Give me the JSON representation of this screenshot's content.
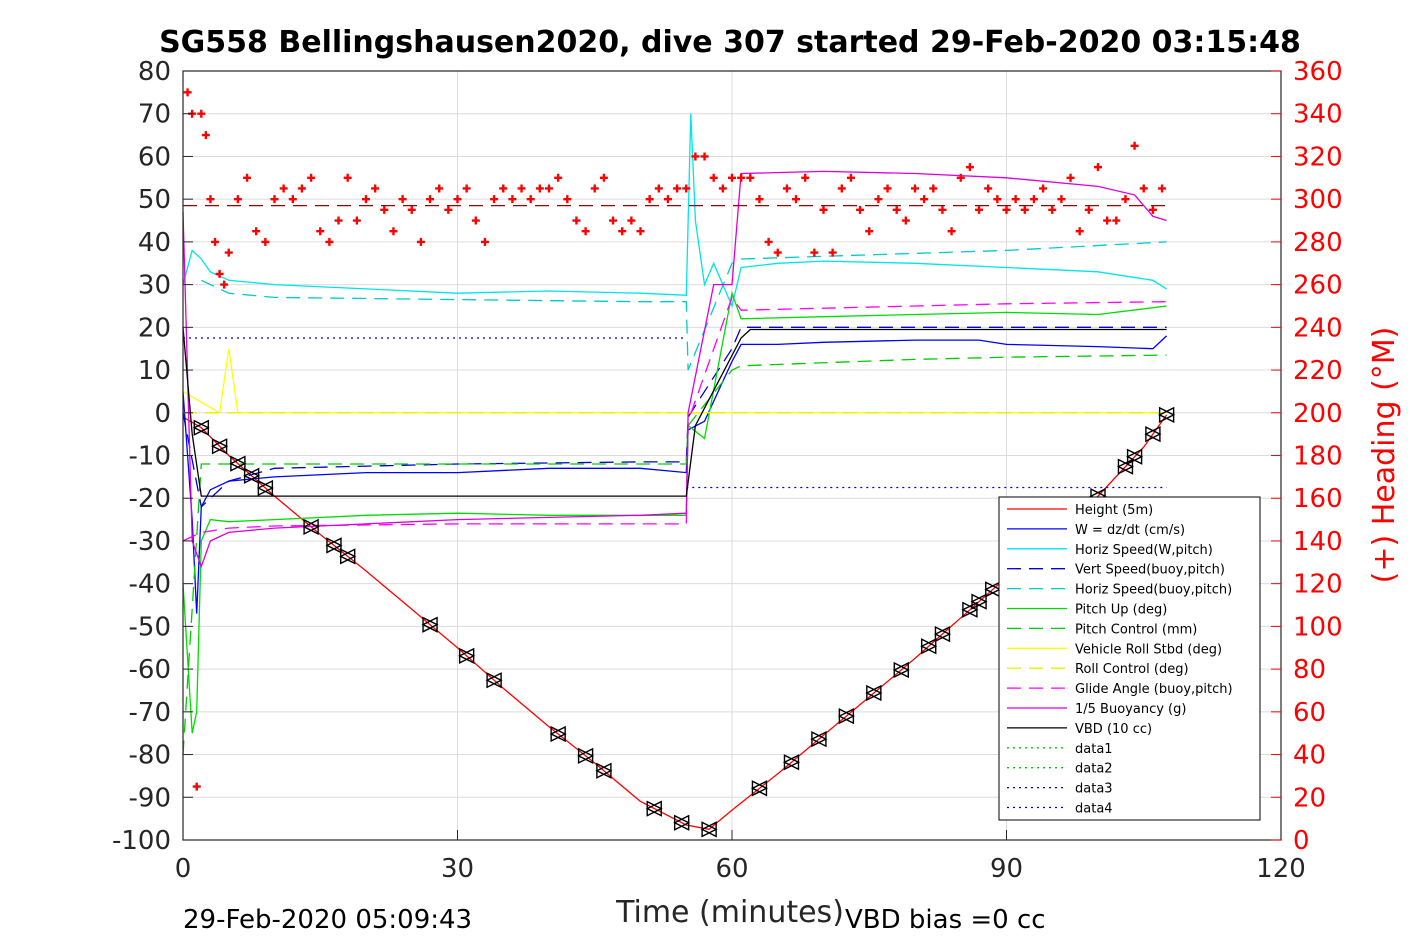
{
  "chart_data": {
    "type": "line",
    "title": "SG558 Bellingshausen2020, dive 307 started 29-Feb-2020 03:15:48",
    "xlabel": "Time (minutes)",
    "ylabel_left": "",
    "ylabel_right": "(+) Heading (°M)",
    "xlim": [
      0,
      120
    ],
    "ylim_left": [
      -100,
      80
    ],
    "ylim_right": [
      0,
      360
    ],
    "x_ticks": [
      "0",
      "30",
      "60",
      "90",
      "120"
    ],
    "y_ticks_left": [
      "80",
      "70",
      "60",
      "50",
      "40",
      "30",
      "20",
      "10",
      "0",
      "-10",
      "-20",
      "-30",
      "-40",
      "-50",
      "-60",
      "-70",
      "-80",
      "-90",
      "-100"
    ],
    "y_ticks_right": [
      "360",
      "340",
      "320",
      "300",
      "280",
      "260",
      "240",
      "220",
      "200",
      "180",
      "160",
      "140",
      "120",
      "100",
      "80",
      "60",
      "40",
      "20",
      "0"
    ],
    "grid": true,
    "legend_position": "bottom-right",
    "footer_left": "29-Feb-2020 05:09:43",
    "footer_right": "VBD bias =0 cc",
    "series": [
      {
        "name": "Height (5m)",
        "color": "#ff0000",
        "style": "solid",
        "x": [
          0,
          2,
          5,
          10,
          15,
          20,
          25,
          30,
          35,
          40,
          45,
          50,
          55,
          57.5,
          60,
          65,
          70,
          75,
          80,
          85,
          90,
          95,
          100,
          105,
          107.5
        ],
        "y": [
          -1,
          -3.5,
          -10,
          -19.5,
          -28.5,
          -37,
          -46,
          -55,
          -64.5,
          -73.5,
          -82,
          -91,
          -96.5,
          -97.5,
          -93,
          -84.5,
          -75.5,
          -66.5,
          -57.5,
          -48,
          -38.5,
          -29,
          -19.5,
          -8,
          -0.5
        ]
      },
      {
        "name": "W = dz/dt (cm/s)",
        "color": "#0000ff",
        "style": "solid",
        "x": [
          0,
          1,
          1.5,
          2,
          3,
          5,
          10,
          20,
          30,
          40,
          50,
          55,
          55.2,
          57,
          60,
          61,
          65,
          70,
          80,
          87,
          90,
          100,
          106,
          107.5
        ],
        "y": [
          5,
          -25,
          -47,
          -22,
          -18,
          -16,
          -15,
          -14,
          -14,
          -13,
          -13,
          -14,
          -4,
          -2,
          12,
          16,
          16,
          16.5,
          17,
          17,
          16,
          15.5,
          15,
          18
        ]
      },
      {
        "name": "Horiz Speed(W,pitch)",
        "color": "#00e5e5",
        "style": "solid",
        "x": [
          0,
          1,
          2,
          3,
          5,
          10,
          20,
          30,
          40,
          50,
          55,
          55.5,
          56,
          57,
          58,
          60,
          61,
          65,
          70,
          80,
          90,
          100,
          106,
          107.5
        ],
        "y": [
          30,
          38,
          36,
          33,
          31,
          30,
          29,
          28,
          28.5,
          28,
          27.5,
          70,
          45,
          30,
          35,
          25,
          34,
          35,
          35.5,
          35,
          34,
          33,
          31,
          29
        ]
      },
      {
        "name": "Vert Speed(buoy,pitch)",
        "color": "#0000cc",
        "style": "dash",
        "x": [
          0,
          2,
          5,
          10,
          30,
          50,
          55,
          55.2,
          60,
          61,
          90,
          107.5
        ],
        "y": [
          0,
          -22,
          -16,
          -13,
          -12,
          -11.5,
          -11.5,
          -1,
          15,
          20,
          20,
          20
        ]
      },
      {
        "name": "Horiz Speed(buoy,pitch)",
        "color": "#00cccc",
        "style": "dash",
        "x": [
          2,
          5,
          10,
          30,
          50,
          55,
          55.2,
          60,
          61,
          90,
          107.5
        ],
        "y": [
          31,
          28,
          27,
          26.5,
          26,
          26,
          10,
          35,
          36,
          38,
          40
        ]
      },
      {
        "name": "Pitch Up (deg)",
        "color": "#00dd00",
        "style": "solid",
        "x": [
          0,
          1,
          1.5,
          2,
          3,
          5,
          10,
          20,
          30,
          40,
          50,
          55,
          55.2,
          57,
          60,
          61,
          70,
          80,
          90,
          100,
          107.5
        ],
        "y": [
          -40,
          -75,
          -70,
          -30,
          -25,
          -25.5,
          -25,
          -24,
          -23.5,
          -24,
          -24,
          -24,
          -3,
          -6,
          28,
          22,
          22.5,
          23,
          23.5,
          23,
          25
        ]
      },
      {
        "name": "Pitch Control (mm)",
        "color": "#00cc00",
        "style": "dash",
        "x": [
          0,
          2,
          10,
          30,
          50,
          55,
          55.2,
          60,
          61,
          80,
          90,
          107.5
        ],
        "y": [
          -80,
          -12,
          -12,
          -12,
          -12,
          -12,
          -3,
          10,
          11,
          12.5,
          13,
          13.5
        ]
      },
      {
        "name": "Vehicle Roll Stbd (deg)",
        "color": "#ffff00",
        "style": "solid",
        "x": [
          0,
          4,
          5,
          6,
          10,
          20,
          30,
          40,
          50,
          55,
          60,
          70,
          80,
          90,
          100,
          107.5
        ],
        "y": [
          5,
          0,
          15,
          0,
          0,
          0,
          0,
          0,
          0,
          0,
          0,
          0,
          0,
          0,
          0,
          0
        ]
      },
      {
        "name": "Roll Control (deg)",
        "color": "#eeee00",
        "style": "dash",
        "x": [
          0,
          10,
          20,
          30,
          40,
          50,
          60,
          70,
          80,
          90,
          100,
          107.5
        ],
        "y": [
          0,
          0,
          0,
          0,
          0,
          0,
          0,
          0,
          0,
          0,
          0,
          0
        ]
      },
      {
        "name": "Glide Angle (buoy,pitch)",
        "color": "#ff00ff",
        "style": "dash",
        "x": [
          0,
          2,
          5,
          10,
          30,
          50,
          55,
          55.2,
          60,
          61,
          80,
          90,
          107.5
        ],
        "y": [
          -30,
          -28,
          -27,
          -26.5,
          -26,
          -26,
          -26,
          -2,
          27,
          24,
          25,
          25.5,
          26
        ]
      },
      {
        "name": "1/5 Buoyancy (g)",
        "color": "#dd00dd",
        "style": "solid",
        "x": [
          0,
          1,
          2,
          3,
          5,
          10,
          20,
          30,
          40,
          50,
          55,
          55.2,
          58,
          60,
          61,
          70,
          80,
          90,
          100,
          104,
          106,
          107.5
        ],
        "y": [
          47,
          -30,
          -36,
          -30,
          -28,
          -27,
          -26,
          -25,
          -24.5,
          -24,
          -23.5,
          0,
          30,
          30,
          56,
          56.5,
          56,
          55,
          53,
          51,
          46,
          45
        ]
      },
      {
        "name": "VBD (10 cc)",
        "color": "#000000",
        "style": "solid",
        "x": [
          0,
          1,
          2,
          3,
          55,
          56,
          61,
          62,
          107.5
        ],
        "y": [
          20,
          -5,
          -19.5,
          -19.5,
          -19.5,
          -3,
          17.5,
          19.5,
          19.5
        ]
      },
      {
        "name": "data1",
        "color": "#00cc00",
        "style": "dot",
        "x": [],
        "y": []
      },
      {
        "name": "data2",
        "color": "#00cc00",
        "style": "dot",
        "x": [],
        "y": []
      },
      {
        "name": "data3",
        "color": "#0000cc",
        "style": "dot",
        "x": [
          0,
          55
        ],
        "y": [
          17.5,
          17.5
        ]
      },
      {
        "name": "data4",
        "color": "#0000cc",
        "style": "dot",
        "x": [
          55,
          107.5
        ],
        "y": [
          -17.5,
          -17.5
        ]
      }
    ],
    "heading_reference": {
      "color": "#990000",
      "style": "dash",
      "x": [
        0,
        107.5
      ],
      "y": [
        297,
        297
      ]
    },
    "heading": {
      "color": "#ff0000",
      "marker": "+",
      "x": [
        0.5,
        1,
        1.5,
        2,
        2.5,
        3,
        3.5,
        4,
        4.5,
        5,
        6,
        7,
        8,
        9,
        10,
        11,
        12,
        13,
        14,
        15,
        16,
        17,
        18,
        19,
        20,
        21,
        22,
        23,
        24,
        25,
        26,
        27,
        28,
        29,
        30,
        31,
        32,
        33,
        34,
        35,
        36,
        37,
        38,
        39,
        40,
        41,
        42,
        43,
        44,
        45,
        46,
        47,
        48,
        49,
        50,
        51,
        52,
        53,
        54,
        55,
        56,
        57,
        58,
        59,
        60,
        61,
        62,
        63,
        64,
        65,
        66,
        67,
        68,
        69,
        70,
        71,
        72,
        73,
        74,
        75,
        76,
        77,
        78,
        79,
        80,
        81,
        82,
        83,
        84,
        85,
        86,
        87,
        88,
        89,
        90,
        91,
        92,
        93,
        94,
        95,
        96,
        97,
        98,
        99,
        100,
        101,
        102,
        103,
        104,
        105,
        106,
        107
      ],
      "y": [
        350,
        340,
        25,
        340,
        330,
        300,
        280,
        265,
        260,
        275,
        300,
        310,
        285,
        280,
        300,
        305,
        300,
        305,
        310,
        285,
        280,
        290,
        310,
        290,
        300,
        305,
        295,
        285,
        300,
        295,
        280,
        300,
        305,
        295,
        300,
        305,
        290,
        280,
        300,
        305,
        300,
        305,
        300,
        305,
        305,
        310,
        300,
        290,
        285,
        305,
        310,
        290,
        285,
        290,
        285,
        300,
        305,
        300,
        305,
        305,
        320,
        320,
        310,
        305,
        310,
        310,
        310,
        300,
        280,
        275,
        305,
        300,
        310,
        275,
        295,
        275,
        305,
        310,
        295,
        285,
        300,
        305,
        295,
        290,
        305,
        300,
        305,
        295,
        285,
        310,
        315,
        295,
        305,
        300,
        295,
        300,
        295,
        300,
        305,
        295,
        300,
        310,
        285,
        295,
        315,
        290,
        290,
        300,
        325,
        305,
        295,
        305
      ]
    },
    "ascent_markers": {
      "marker": "triangle",
      "color": "#000000",
      "series_ref": "Height (5m)",
      "x": [
        2,
        4,
        6,
        7.5,
        9,
        14,
        16.5,
        18,
        27,
        31,
        34,
        41,
        44,
        46,
        51.5,
        54.5,
        57.5,
        63,
        66.5,
        69.5,
        72.5,
        75.5,
        78.5,
        81.5,
        83,
        86,
        87,
        88.5,
        97,
        100,
        103,
        104,
        106,
        107.5
      ]
    }
  }
}
